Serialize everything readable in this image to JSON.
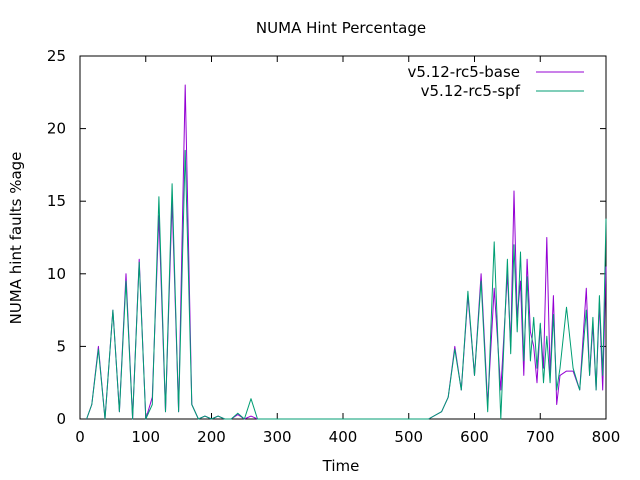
{
  "chart_data": {
    "type": "line",
    "title": "NUMA Hint Percentage",
    "xlabel": "Time",
    "ylabel": "NUMA hint faults %age",
    "xlim": [
      0,
      800
    ],
    "ylim": [
      0,
      25
    ],
    "xticks": [
      "0",
      "100",
      "200",
      "300",
      "400",
      "500",
      "600",
      "700",
      "800"
    ],
    "yticks": [
      "0",
      "5",
      "10",
      "15",
      "20",
      "25"
    ],
    "grid": false,
    "legend_position": "top-right",
    "series": [
      {
        "name": "v5.12-rc5-base",
        "color": "#9400d3",
        "points": [
          [
            10,
            0
          ],
          [
            18,
            1
          ],
          [
            28,
            5
          ],
          [
            38,
            0
          ],
          [
            50,
            7.5
          ],
          [
            60,
            0.5
          ],
          [
            70,
            10
          ],
          [
            80,
            0
          ],
          [
            90,
            11
          ],
          [
            100,
            0
          ],
          [
            110,
            1.5
          ],
          [
            120,
            14
          ],
          [
            130,
            0.5
          ],
          [
            140,
            15
          ],
          [
            150,
            0.5
          ],
          [
            160,
            23
          ],
          [
            170,
            1
          ],
          [
            180,
            0
          ],
          [
            190,
            0.2
          ],
          [
            200,
            0
          ],
          [
            210,
            0.2
          ],
          [
            220,
            0
          ],
          [
            230,
            0
          ],
          [
            240,
            0.3
          ],
          [
            250,
            0
          ],
          [
            260,
            0.2
          ],
          [
            270,
            0
          ],
          [
            530,
            0
          ],
          [
            550,
            0.5
          ],
          [
            560,
            1.5
          ],
          [
            570,
            5
          ],
          [
            580,
            2
          ],
          [
            590,
            8.5
          ],
          [
            600,
            3
          ],
          [
            610,
            10
          ],
          [
            620,
            1
          ],
          [
            630,
            9
          ],
          [
            640,
            2
          ],
          [
            650,
            10
          ],
          [
            655,
            5
          ],
          [
            660,
            15.7
          ],
          [
            665,
            7
          ],
          [
            670,
            9.5
          ],
          [
            675,
            3
          ],
          [
            680,
            11
          ],
          [
            685,
            6
          ],
          [
            690,
            5
          ],
          [
            695,
            2.5
          ],
          [
            700,
            6.5
          ],
          [
            705,
            3.5
          ],
          [
            710,
            12.5
          ],
          [
            715,
            3
          ],
          [
            720,
            8.5
          ],
          [
            725,
            1
          ],
          [
            730,
            3
          ],
          [
            740,
            3.3
          ],
          [
            750,
            3.3
          ],
          [
            760,
            2
          ],
          [
            770,
            9
          ],
          [
            775,
            3
          ],
          [
            780,
            6.5
          ],
          [
            785,
            2
          ],
          [
            790,
            8
          ],
          [
            795,
            2
          ],
          [
            800,
            10.5
          ]
        ]
      },
      {
        "name": "v5.12-rc5-spf",
        "color": "#009e73",
        "points": [
          [
            10,
            0
          ],
          [
            18,
            1
          ],
          [
            28,
            4.8
          ],
          [
            38,
            0
          ],
          [
            50,
            7.5
          ],
          [
            60,
            0.5
          ],
          [
            70,
            9.5
          ],
          [
            80,
            0
          ],
          [
            90,
            10.8
          ],
          [
            100,
            0
          ],
          [
            110,
            1
          ],
          [
            120,
            15.3
          ],
          [
            130,
            0.5
          ],
          [
            140,
            16.2
          ],
          [
            150,
            0.5
          ],
          [
            160,
            18.5
          ],
          [
            170,
            1
          ],
          [
            180,
            0
          ],
          [
            190,
            0.2
          ],
          [
            200,
            0
          ],
          [
            210,
            0.2
          ],
          [
            220,
            0
          ],
          [
            230,
            0
          ],
          [
            240,
            0.4
          ],
          [
            250,
            0
          ],
          [
            260,
            1.4
          ],
          [
            270,
            0
          ],
          [
            530,
            0
          ],
          [
            550,
            0.5
          ],
          [
            560,
            1.5
          ],
          [
            570,
            4.8
          ],
          [
            580,
            2
          ],
          [
            590,
            8.8
          ],
          [
            600,
            3
          ],
          [
            610,
            9.5
          ],
          [
            620,
            0.5
          ],
          [
            630,
            12.2
          ],
          [
            640,
            0
          ],
          [
            650,
            11
          ],
          [
            655,
            4.5
          ],
          [
            660,
            12
          ],
          [
            665,
            6
          ],
          [
            670,
            11.5
          ],
          [
            675,
            4
          ],
          [
            680,
            9.8
          ],
          [
            685,
            4
          ],
          [
            690,
            7
          ],
          [
            695,
            3.5
          ],
          [
            700,
            6.6
          ],
          [
            705,
            2.5
          ],
          [
            710,
            5.7
          ],
          [
            715,
            2.5
          ],
          [
            720,
            7.2
          ],
          [
            725,
            2
          ],
          [
            730,
            3.5
          ],
          [
            740,
            7.7
          ],
          [
            750,
            3.5
          ],
          [
            760,
            2
          ],
          [
            770,
            7.5
          ],
          [
            775,
            3
          ],
          [
            780,
            7
          ],
          [
            785,
            2
          ],
          [
            790,
            8.5
          ],
          [
            795,
            3
          ],
          [
            800,
            13.8
          ]
        ]
      }
    ]
  }
}
